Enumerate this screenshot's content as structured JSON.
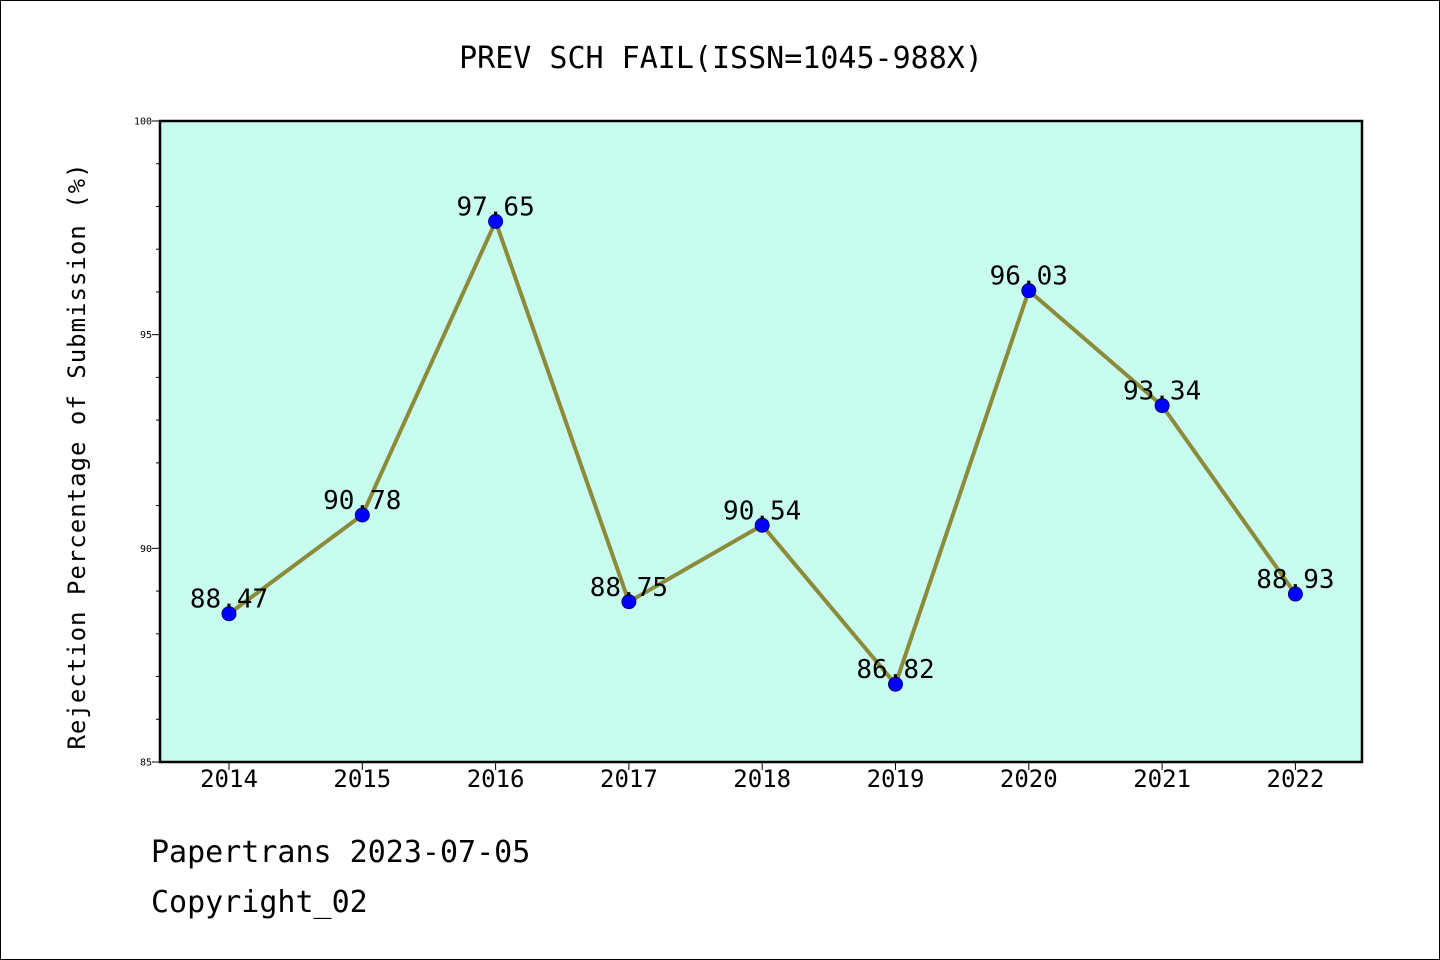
{
  "chart_data": {
    "type": "line",
    "title": "PREV SCH FAIL(ISSN=1045-988X)",
    "xlabel": "",
    "ylabel": "Rejection Percentage of Submission (%)",
    "categories": [
      "2014",
      "2015",
      "2016",
      "2017",
      "2018",
      "2019",
      "2020",
      "2021",
      "2022"
    ],
    "series": [
      {
        "values": [
          88.47,
          90.78,
          97.65,
          88.75,
          90.54,
          86.82,
          96.03,
          93.34,
          88.93
        ]
      }
    ],
    "data_labels": [
      "88.47",
      "90.78",
      "97.65",
      "88.75",
      "90.54",
      "86.82",
      "96.03",
      "93.34",
      "88.93"
    ],
    "ylim": [
      85,
      100
    ],
    "y_major_ticks": [
      85,
      90,
      95,
      100
    ],
    "y_tick_labels": [
      "85",
      "90",
      "95",
      "100"
    ],
    "y_minor_step": 1,
    "grid": false,
    "colors": {
      "plot_background": "#c8fcee",
      "line": "#8b8b3a",
      "marker_fill": "#0000ff",
      "marker_edge": "#000080"
    }
  },
  "footer": {
    "line1": "Papertrans 2023-07-05",
    "line2": "Copyright_02"
  }
}
